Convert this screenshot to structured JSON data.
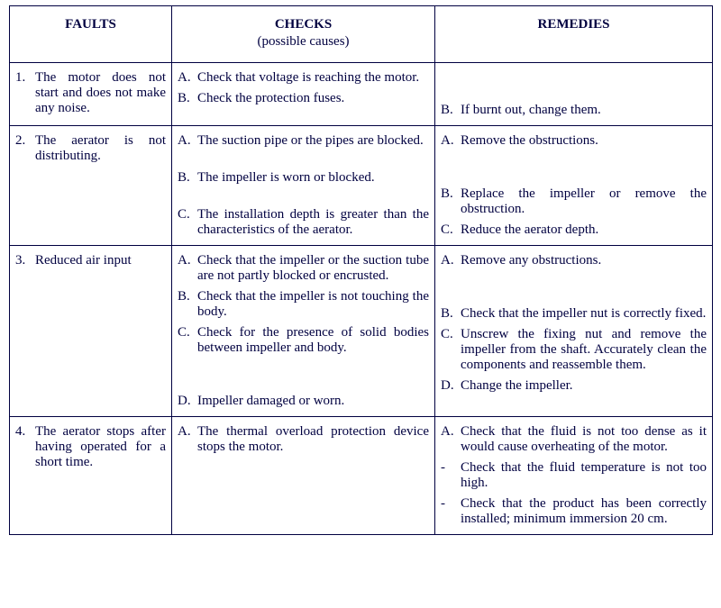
{
  "headers": {
    "faults": "FAULTS",
    "checks": "CHECKS",
    "checks_sub": "(possible causes)",
    "remedies": "REMEDIES"
  },
  "rows": [
    {
      "fault_marker": "1.",
      "fault_text": "The motor does not start and does not make any noise.",
      "checks": [
        {
          "marker": "A.",
          "text": "Check that voltage is reaching the motor.",
          "spacer_after": "",
          "justify": true
        },
        {
          "marker": "B.",
          "text": "Check the protection fuses.",
          "spacer_after": "",
          "justify": false
        }
      ],
      "remedies": [
        {
          "marker": "",
          "text": "",
          "spacer_before": "sp2",
          "justify": false
        },
        {
          "marker": "B.",
          "text": "If burnt out, change them.",
          "spacer_before": "",
          "justify": false
        }
      ]
    },
    {
      "fault_marker": "2.",
      "fault_text": "The aerator is not distributing.",
      "checks": [
        {
          "marker": "A.",
          "text": "The suction pipe or the pipes are blocked.",
          "spacer_after": "sp",
          "justify": true
        },
        {
          "marker": "B.",
          "text": "The impeller is worn or blocked.",
          "spacer_after": "sp",
          "justify": false
        },
        {
          "marker": "C.",
          "text": "The installation depth is greater than the characteristics of the aerator.",
          "spacer_after": "",
          "justify": true
        }
      ],
      "remedies": [
        {
          "marker": "A.",
          "text": "Remove the obstructions.",
          "spacer_before": "",
          "justify": false,
          "spacer_after": "sp2"
        },
        {
          "marker": "B.",
          "text": "Replace the impeller or remove the obstruction.",
          "spacer_before": "",
          "justify": true
        },
        {
          "marker": "C.",
          "text": "Reduce the aerator depth.",
          "spacer_before": "",
          "justify": false
        }
      ]
    },
    {
      "fault_marker": "3.",
      "fault_text": "Reduced air input",
      "checks": [
        {
          "marker": "A.",
          "text": "Check that the impeller or the suction tube are not partly blocked or encrusted.",
          "spacer_after": "",
          "justify": true
        },
        {
          "marker": "B.",
          "text": "Check that the impeller is not touching the body.",
          "spacer_after": "",
          "justify": true
        },
        {
          "marker": "C.",
          "text": "Check for the presence of solid bodies between impeller and body.",
          "spacer_after": "sp2",
          "justify": true
        },
        {
          "marker": "D.",
          "text": "Impeller damaged or worn.",
          "spacer_after": "",
          "justify": false
        }
      ],
      "remedies": [
        {
          "marker": "A.",
          "text": "Remove any obstructions.",
          "spacer_before": "",
          "justify": false,
          "spacer_after": "sp2"
        },
        {
          "marker": "B.",
          "text": "Check that the impeller nut is correctly fixed.",
          "spacer_before": "",
          "justify": true
        },
        {
          "marker": "C.",
          "text": "Unscrew the fixing nut and remove the impeller from the shaft. Accurately clean the components and reassemble them.",
          "spacer_before": "",
          "justify": true
        },
        {
          "marker": "D.",
          "text": "Change the impeller.",
          "spacer_before": "",
          "justify": false
        }
      ]
    },
    {
      "fault_marker": "4.",
      "fault_text": "The aerator stops after having operated for a short time.",
      "checks": [
        {
          "marker": "A.",
          "text": "The thermal overload protection device stops the motor.",
          "spacer_after": "",
          "justify": true
        }
      ],
      "remedies": [
        {
          "marker": "A.",
          "text": "Check that the fluid is not too dense as it would cause overheating of the motor.",
          "spacer_before": "",
          "justify": true
        },
        {
          "marker": "-",
          "text": "Check that the fluid temperature is not too high.",
          "spacer_before": "",
          "justify": true
        },
        {
          "marker": "-",
          "text": "Check that the product has been correctly installed; minimum immersion 20 cm.",
          "spacer_before": "",
          "justify": true
        }
      ]
    }
  ]
}
